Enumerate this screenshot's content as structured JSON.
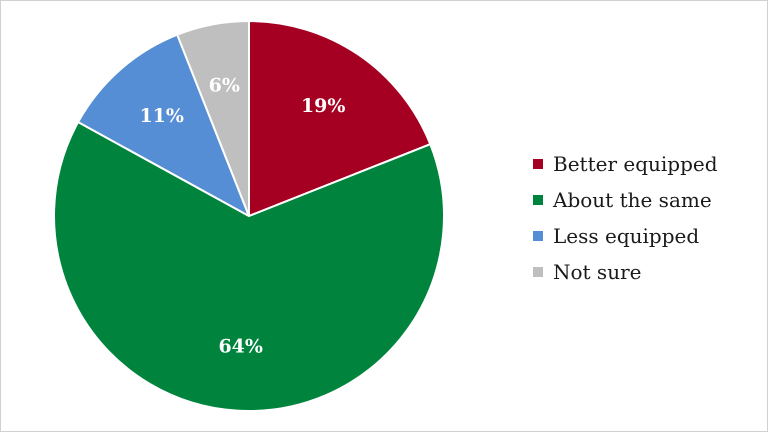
{
  "chart_data": {
    "type": "pie",
    "title": "",
    "categories": [
      "Better equipped",
      "About the same",
      "Less equipped",
      "Not sure"
    ],
    "values": [
      19,
      64,
      11,
      6
    ],
    "labels": [
      "19%",
      "64%",
      "11%",
      "6%"
    ],
    "colors": [
      "#a50021",
      "#00843d",
      "#558ed5",
      "#bfbfbf"
    ],
    "start_angle_deg": 0,
    "direction": "clockwise",
    "legend_position": "right"
  }
}
